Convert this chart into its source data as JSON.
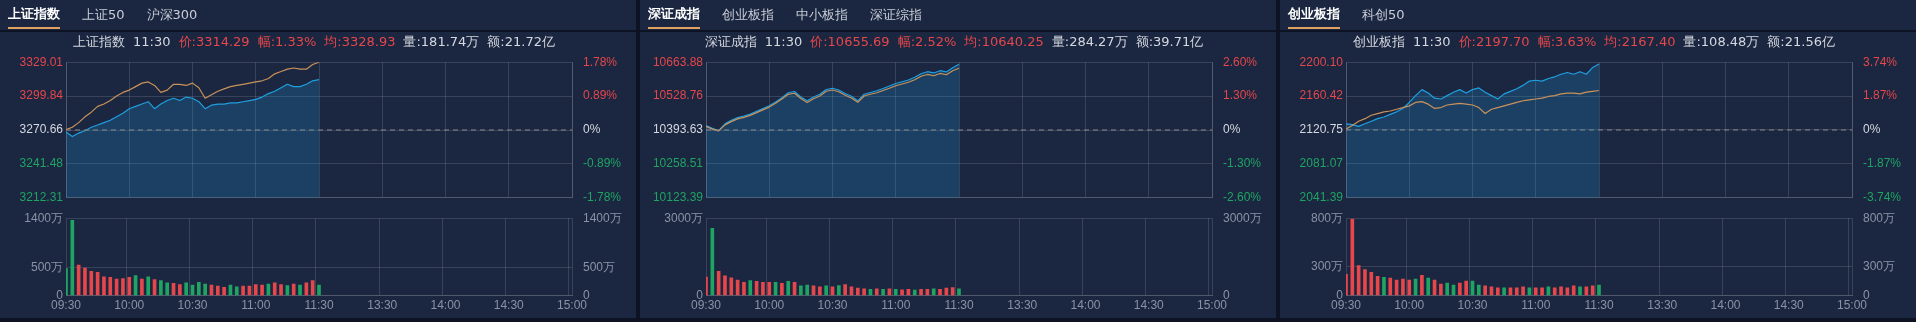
{
  "chart_data": [
    {
      "type": "other",
      "annotations": [
        "上证指数",
        "上证50",
        "沪深300"
      ]
    },
    {
      "type": "line",
      "title": "上证指数",
      "annotations": [
        "11:30",
        "价:3314.29",
        "幅:1.33%",
        "均:3328.93",
        "量:181.74万",
        "额:21.72亿"
      ],
      "categories": [
        null,
        null,
        null,
        null,
        null,
        null,
        null,
        null,
        null,
        null,
        null,
        null,
        null,
        null,
        null,
        null,
        null,
        null,
        null,
        null,
        null,
        null,
        null,
        null,
        null,
        null,
        null,
        null,
        null,
        null,
        null,
        null,
        null,
        null,
        null,
        null,
        null,
        null,
        null,
        null,
        null,
        null,
        null,
        null,
        null,
        null,
        null,
        null,
        null,
        null,
        null,
        null,
        null,
        null,
        null,
        null,
        null,
        null,
        null,
        null,
        null,
        null,
        null,
        null,
        null,
        null,
        null,
        null,
        null,
        null,
        null,
        null,
        null,
        null,
        null,
        null,
        null,
        null,
        null,
        null,
        null
      ],
      "tick_labels": "y",
      "ylim": [
        3212.31,
        3329.01
      ],
      "yticks": [
        3212.31,
        3241.48,
        3270.66,
        3299.84,
        3329.01
      ],
      "y2lim": [
        -1.78,
        1.78
      ],
      "y2ticks": [
        {
          "value": -1.78,
          "label": "-1.78%"
        },
        {
          "value": -0.89,
          "label": "-0.89%"
        },
        {
          "value": 0,
          "label": "0%"
        },
        {
          "value": 0.89,
          "label": "0.89%"
        },
        {
          "value": 1.78,
          "label": "1.78%"
        }
      ],
      "grid": true,
      "ref_lines": [
        {
          "axis": "y",
          "value": 3270.66,
          "color": "#8a8a8a",
          "line_style": "dashed"
        }
      ],
      "series": [
        {
          "type": "area",
          "color": "#1e9fe0",
          "values": [
            3269,
            3265,
            3268,
            3270,
            3273,
            3275,
            3277,
            3279,
            3282,
            3285,
            3289,
            3291,
            3293,
            3295,
            3289,
            3293,
            3296,
            3298,
            3296,
            3299,
            3298,
            3295,
            3289,
            3292,
            3293,
            3293,
            3294,
            3294,
            3295,
            3296,
            3297,
            3299,
            3302,
            3304,
            3307,
            3310,
            3308,
            3308,
            3310,
            3313,
            3314,
            null,
            null,
            null,
            null,
            null,
            null,
            null,
            null,
            null,
            null,
            null,
            null,
            null,
            null,
            null,
            null,
            null,
            null,
            null,
            null,
            null,
            null,
            null,
            null,
            null,
            null,
            null,
            null,
            null,
            null,
            null,
            null,
            null,
            null,
            null,
            null,
            null,
            null,
            null,
            null
          ]
        },
        {
          "type": "line",
          "color": "#c8925a",
          "values": [
            3271,
            3273,
            3277,
            3282,
            3286,
            3291,
            3293,
            3296,
            3300,
            3303,
            3305,
            3308,
            3311,
            3312,
            3309,
            3303,
            3305,
            3310,
            3310,
            3309,
            3311,
            3307,
            3298,
            3301,
            3304,
            3306,
            3308,
            3309,
            3310,
            3311,
            3312,
            3313,
            3315,
            3319,
            3321,
            3323,
            3324,
            3323,
            3323,
            3327,
            3329,
            null,
            null,
            null,
            null,
            null,
            null,
            null,
            null,
            null,
            null,
            null,
            null,
            null,
            null,
            null,
            null,
            null,
            null,
            null,
            null,
            null,
            null,
            null,
            null,
            null,
            null,
            null,
            null,
            null,
            null,
            null,
            null,
            null,
            null,
            null,
            null,
            null,
            null,
            null,
            null
          ]
        }
      ]
    },
    {
      "type": "bar",
      "categories": [
        "09:30",
        null,
        null,
        null,
        null,
        null,
        null,
        null,
        null,
        null,
        "10:00",
        null,
        null,
        null,
        null,
        null,
        null,
        null,
        null,
        null,
        "10:30",
        null,
        null,
        null,
        null,
        null,
        null,
        null,
        null,
        null,
        "11:00",
        null,
        null,
        null,
        null,
        null,
        null,
        null,
        null,
        null,
        "11:30",
        null,
        null,
        null,
        null,
        null,
        null,
        null,
        null,
        null,
        "13:30",
        null,
        null,
        null,
        null,
        null,
        null,
        null,
        null,
        null,
        "14:00",
        null,
        null,
        null,
        null,
        null,
        null,
        null,
        null,
        null,
        "14:30",
        null,
        null,
        null,
        null,
        null,
        null,
        null,
        null,
        null,
        "15:00"
      ],
      "ylim": [
        0,
        1400
      ],
      "yticks": [
        0,
        {
          "value": 500,
          "label": "500万"
        },
        {
          "value": 1400,
          "label": "1400万"
        }
      ],
      "y2lim": [
        0,
        1400
      ],
      "y2ticks": [
        {
          "value": 0,
          "label": "0"
        },
        {
          "value": 500,
          "label": "500万"
        },
        {
          "value": 1400,
          "label": "1400万"
        }
      ],
      "grid": true,
      "series": [
        {
          "values": [
            490,
            1360,
            550,
            500,
            440,
            420,
            340,
            330,
            300,
            310,
            330,
            360,
            300,
            340,
            290,
            270,
            230,
            220,
            200,
            230,
            190,
            240,
            210,
            190,
            170,
            150,
            190,
            160,
            170,
            170,
            200,
            190,
            210,
            230,
            200,
            180,
            210,
            190,
            230,
            270,
            190,
            null,
            null,
            null,
            null,
            null,
            null,
            null,
            null,
            null,
            null,
            null,
            null,
            null,
            null,
            null,
            null,
            null,
            null,
            null,
            null,
            null,
            null,
            null,
            null,
            null,
            null,
            null,
            null,
            null,
            null,
            null,
            null,
            null,
            null,
            null,
            null,
            null,
            null,
            null,
            null
          ],
          "colors": [
            "#1fa463",
            "#1fa463",
            "#e5474b",
            "#e5474b",
            "#e5474b",
            "#e5474b",
            "#e5474b",
            "#e5474b",
            "#e5474b",
            "#e5474b",
            "#e5474b",
            "#1fa463",
            "#e5474b",
            "#1fa463",
            "#e5474b",
            "#1fa463",
            "#1fa463",
            "#e5474b",
            "#e5474b",
            "#1fa463",
            "#1fa463",
            "#1fa463",
            "#1fa463",
            "#e5474b",
            "#e5474b",
            "#e5474b",
            "#1fa463",
            "#1fa463",
            "#e5474b",
            "#e5474b",
            "#e5474b",
            "#e5474b",
            "#1fa463",
            "#e5474b",
            "#e5474b",
            "#1fa463",
            "#e5474b",
            "#1fa463",
            "#e5474b",
            "#e5474b",
            "#1fa463",
            null,
            null,
            null,
            null,
            null,
            null,
            null,
            null,
            null,
            null,
            null,
            null,
            null,
            null,
            null,
            null,
            null,
            null,
            null,
            null,
            null,
            null,
            null,
            null,
            null,
            null,
            null,
            null,
            null,
            null,
            null,
            null,
            null,
            null,
            null,
            null,
            null,
            null,
            null,
            null
          ]
        }
      ]
    },
    {
      "type": "other",
      "annotations": [
        "深证成指",
        "创业板指",
        "中小板指",
        "深证综指"
      ]
    },
    {
      "type": "line",
      "title": "深证成指",
      "annotations": [
        "11:30",
        "价:10655.69",
        "幅:2.52%",
        "均:10640.25",
        "量:284.27万",
        "额:39.71亿"
      ],
      "categories": [
        null,
        null,
        null,
        null,
        null,
        null,
        null,
        null,
        null,
        null,
        null,
        null,
        null,
        null,
        null,
        null,
        null,
        null,
        null,
        null,
        null,
        null,
        null,
        null,
        null,
        null,
        null,
        null,
        null,
        null,
        null,
        null,
        null,
        null,
        null,
        null,
        null,
        null,
        null,
        null,
        null,
        null,
        null,
        null,
        null,
        null,
        null,
        null,
        null,
        null,
        null,
        null,
        null,
        null,
        null,
        null,
        null,
        null,
        null,
        null,
        null,
        null,
        null,
        null,
        null,
        null,
        null,
        null,
        null,
        null,
        null,
        null,
        null,
        null,
        null,
        null,
        null,
        null,
        null,
        null,
        null
      ],
      "tick_labels": "y",
      "ylim": [
        10123.39,
        10663.88
      ],
      "yticks": [
        10123.39,
        10258.51,
        10393.63,
        10528.76,
        10663.88
      ],
      "y2lim": [
        -2.6,
        2.6
      ],
      "y2ticks": [
        {
          "value": -2.6,
          "label": "-2.60%"
        },
        {
          "value": -1.3,
          "label": "-1.30%"
        },
        {
          "value": 0,
          "label": "0%"
        },
        {
          "value": 1.3,
          "label": "1.30%"
        },
        {
          "value": 2.6,
          "label": "2.60%"
        }
      ],
      "grid": true,
      "ref_lines": [
        {
          "axis": "y",
          "value": 10393.63,
          "color": "#8a8a8a",
          "line_style": "dashed"
        }
      ],
      "series": [
        {
          "type": "area",
          "color": "#1e9fe0",
          "values": [
            10411,
            10400,
            10391,
            10418,
            10432,
            10443,
            10449,
            10457,
            10468,
            10479,
            10490,
            10505,
            10522,
            10542,
            10547,
            10525,
            10510,
            10525,
            10536,
            10555,
            10560,
            10553,
            10539,
            10528,
            10510,
            10536,
            10543,
            10550,
            10559,
            10569,
            10579,
            10586,
            10593,
            10604,
            10618,
            10626,
            10621,
            10630,
            10625,
            10642,
            10656,
            null,
            null,
            null,
            null,
            null,
            null,
            null,
            null,
            null,
            null,
            null,
            null,
            null,
            null,
            null,
            null,
            null,
            null,
            null,
            null,
            null,
            null,
            null,
            null,
            null,
            null,
            null,
            null,
            null,
            null,
            null,
            null,
            null,
            null,
            null,
            null,
            null,
            null,
            null,
            null
          ]
        },
        {
          "type": "line",
          "color": "#c8925a",
          "values": [
            10408,
            10397,
            10390,
            10414,
            10427,
            10438,
            10444,
            10452,
            10463,
            10474,
            10485,
            10500,
            10517,
            10536,
            10540,
            10519,
            10503,
            10518,
            10529,
            10548,
            10553,
            10546,
            10532,
            10521,
            10504,
            10529,
            10536,
            10542,
            10551,
            10560,
            10570,
            10577,
            10584,
            10594,
            10608,
            10615,
            10610,
            10619,
            10614,
            10630,
            10640,
            null,
            null,
            null,
            null,
            null,
            null,
            null,
            null,
            null,
            null,
            null,
            null,
            null,
            null,
            null,
            null,
            null,
            null,
            null,
            null,
            null,
            null,
            null,
            null,
            null,
            null,
            null,
            null,
            null,
            null,
            null,
            null,
            null,
            null,
            null,
            null,
            null,
            null,
            null,
            null
          ]
        }
      ]
    },
    {
      "type": "bar",
      "categories": [
        "09:30",
        null,
        null,
        null,
        null,
        null,
        null,
        null,
        null,
        null,
        "10:00",
        null,
        null,
        null,
        null,
        null,
        null,
        null,
        null,
        null,
        "10:30",
        null,
        null,
        null,
        null,
        null,
        null,
        null,
        null,
        null,
        "11:00",
        null,
        null,
        null,
        null,
        null,
        null,
        null,
        null,
        null,
        "11:30",
        null,
        null,
        null,
        null,
        null,
        null,
        null,
        null,
        null,
        "13:30",
        null,
        null,
        null,
        null,
        null,
        null,
        null,
        null,
        null,
        "14:00",
        null,
        null,
        null,
        null,
        null,
        null,
        null,
        null,
        null,
        "14:30",
        null,
        null,
        null,
        null,
        null,
        null,
        null,
        null,
        null,
        "15:00"
      ],
      "ylim": [
        0,
        3000
      ],
      "yticks": [
        0,
        {
          "value": 3000,
          "label": "3000万"
        }
      ],
      "y2lim": [
        0,
        3000
      ],
      "y2ticks": [
        {
          "value": 0,
          "label": "0"
        },
        {
          "value": 3000,
          "label": "3000万"
        }
      ],
      "grid": true,
      "series": [
        {
          "values": [
            720,
            2610,
            940,
            770,
            690,
            600,
            510,
            580,
            550,
            510,
            510,
            510,
            480,
            550,
            510,
            380,
            410,
            380,
            340,
            380,
            340,
            390,
            430,
            340,
            290,
            260,
            240,
            260,
            240,
            260,
            240,
            220,
            240,
            210,
            240,
            240,
            260,
            240,
            290,
            310,
            260,
            null,
            null,
            null,
            null,
            null,
            null,
            null,
            null,
            null,
            null,
            null,
            null,
            null,
            null,
            null,
            null,
            null,
            null,
            null,
            null,
            null,
            null,
            null,
            null,
            null,
            null,
            null,
            null,
            null,
            null,
            null,
            null,
            null,
            null,
            null,
            null,
            null,
            null,
            null,
            null
          ],
          "colors": [
            "#e5474b",
            "#1fa463",
            "#e5474b",
            "#e5474b",
            "#e5474b",
            "#e5474b",
            "#e5474b",
            "#1fa463",
            "#e5474b",
            "#e5474b",
            "#e5474b",
            "#1fa463",
            "#e5474b",
            "#1fa463",
            "#e5474b",
            "#1fa463",
            "#1fa463",
            "#e5474b",
            "#e5474b",
            "#1fa463",
            "#e5474b",
            "#1fa463",
            "#e5474b",
            "#e5474b",
            "#e5474b",
            "#e5474b",
            "#1fa463",
            "#e5474b",
            "#1fa463",
            "#e5474b",
            "#1fa463",
            "#e5474b",
            "#e5474b",
            "#1fa463",
            "#e5474b",
            "#e5474b",
            "#1fa463",
            "#e5474b",
            "#e5474b",
            "#e5474b",
            "#1fa463",
            null,
            null,
            null,
            null,
            null,
            null,
            null,
            null,
            null,
            null,
            null,
            null,
            null,
            null,
            null,
            null,
            null,
            null,
            null,
            null,
            null,
            null,
            null,
            null,
            null,
            null,
            null,
            null,
            null,
            null,
            null,
            null,
            null,
            null,
            null,
            null,
            null,
            null,
            null,
            null
          ]
        }
      ]
    },
    {
      "type": "other",
      "annotations": [
        "创业板指",
        "科创50"
      ]
    },
    {
      "type": "line",
      "title": "创业板指",
      "annotations": [
        "11:30",
        "价:2197.70",
        "幅:3.63%",
        "均:2167.40",
        "量:108.48万",
        "额:21.56亿"
      ],
      "categories": [
        null,
        null,
        null,
        null,
        null,
        null,
        null,
        null,
        null,
        null,
        null,
        null,
        null,
        null,
        null,
        null,
        null,
        null,
        null,
        null,
        null,
        null,
        null,
        null,
        null,
        null,
        null,
        null,
        null,
        null,
        null,
        null,
        null,
        null,
        null,
        null,
        null,
        null,
        null,
        null,
        null,
        null,
        null,
        null,
        null,
        null,
        null,
        null,
        null,
        null,
        null,
        null,
        null,
        null,
        null,
        null,
        null,
        null,
        null,
        null,
        null,
        null,
        null,
        null,
        null,
        null,
        null,
        null,
        null,
        null,
        null,
        null,
        null,
        null,
        null,
        null,
        null,
        null,
        null,
        null,
        null
      ],
      "tick_labels": "y",
      "ylim": [
        2041.39,
        2200.1
      ],
      "yticks": [
        2041.39,
        2081.07,
        2120.75,
        2160.42,
        {
          "value": 2200.1,
          "label": "2200.10"
        }
      ],
      "y2lim": [
        -3.74,
        3.74
      ],
      "y2ticks": [
        {
          "value": -3.74,
          "label": "-3.74%"
        },
        {
          "value": -1.87,
          "label": "-1.87%"
        },
        {
          "value": 0,
          "label": "0%"
        },
        {
          "value": 1.87,
          "label": "1.87%"
        },
        {
          "value": 3.74,
          "label": "3.74%"
        }
      ],
      "grid": true,
      "ref_lines": [
        {
          "axis": "y",
          "value": 2120.75,
          "color": "#8a8a8a",
          "line_style": "dashed"
        }
      ],
      "series": [
        {
          "type": "area",
          "color": "#1e9fe0",
          "values": [
            2128,
            2127,
            2125,
            2128,
            2131,
            2134,
            2136,
            2139,
            2142,
            2146,
            2153,
            2161,
            2168,
            2164,
            2158,
            2157,
            2161,
            2165,
            2168,
            2164,
            2168,
            2170,
            2165,
            2161,
            2157,
            2163,
            2166,
            2169,
            2173,
            2178,
            2179,
            2178,
            2181,
            2183,
            2186,
            2188,
            2186,
            2189,
            2186,
            2194,
            2198,
            null,
            null,
            null,
            null,
            null,
            null,
            null,
            null,
            null,
            null,
            null,
            null,
            null,
            null,
            null,
            null,
            null,
            null,
            null,
            null,
            null,
            null,
            null,
            null,
            null,
            null,
            null,
            null,
            null,
            null,
            null,
            null,
            null,
            null,
            null,
            null,
            null,
            null,
            null,
            null
          ]
        },
        {
          "type": "line",
          "color": "#c8925a",
          "values": [
            2122,
            2126,
            2131,
            2134,
            2138,
            2140,
            2142,
            2143,
            2145,
            2147,
            2149,
            2153,
            2154,
            2151,
            2146,
            2147,
            2150,
            2151,
            2152,
            2151,
            2150,
            2147,
            2140,
            2145,
            2147,
            2149,
            2151,
            2153,
            2155,
            2156,
            2157,
            2158,
            2160,
            2161,
            2163,
            2164,
            2164,
            2163,
            2165,
            2166,
            2167,
            null,
            null,
            null,
            null,
            null,
            null,
            null,
            null,
            null,
            null,
            null,
            null,
            null,
            null,
            null,
            null,
            null,
            null,
            null,
            null,
            null,
            null,
            null,
            null,
            null,
            null,
            null,
            null,
            null,
            null,
            null,
            null,
            null,
            null,
            null,
            null,
            null,
            null,
            null,
            null
          ]
        }
      ]
    },
    {
      "type": "bar",
      "categories": [
        "09:30",
        null,
        null,
        null,
        null,
        null,
        null,
        null,
        null,
        null,
        "10:00",
        null,
        null,
        null,
        null,
        null,
        null,
        null,
        null,
        null,
        "10:30",
        null,
        null,
        null,
        null,
        null,
        null,
        null,
        null,
        null,
        "11:00",
        null,
        null,
        null,
        null,
        null,
        null,
        null,
        null,
        null,
        "11:30",
        null,
        null,
        null,
        null,
        null,
        null,
        null,
        null,
        null,
        "13:30",
        null,
        null,
        null,
        null,
        null,
        null,
        null,
        null,
        null,
        "14:00",
        null,
        null,
        null,
        null,
        null,
        null,
        null,
        null,
        null,
        "14:30",
        null,
        null,
        null,
        null,
        null,
        null,
        null,
        null,
        null,
        "15:00"
      ],
      "ylim": [
        0,
        800
      ],
      "yticks": [
        0,
        {
          "value": 300,
          "label": "300万"
        },
        {
          "value": 800,
          "label": "800万"
        }
      ],
      "y2lim": [
        0,
        800
      ],
      "y2ticks": [
        {
          "value": 0,
          "label": "0"
        },
        {
          "value": 300,
          "label": "300万"
        },
        {
          "value": 800,
          "label": "800万"
        }
      ],
      "grid": true,
      "series": [
        {
          "values": [
            220,
            790,
            310,
            270,
            240,
            200,
            190,
            180,
            160,
            170,
            160,
            170,
            210,
            180,
            160,
            120,
            130,
            110,
            130,
            150,
            150,
            110,
            100,
            90,
            80,
            80,
            80,
            80,
            90,
            80,
            80,
            80,
            90,
            80,
            90,
            80,
            100,
            90,
            90,
            100,
            110,
            null,
            null,
            null,
            null,
            null,
            null,
            null,
            null,
            null,
            null,
            null,
            null,
            null,
            null,
            null,
            null,
            null,
            null,
            null,
            null,
            null,
            null,
            null,
            null,
            null,
            null,
            null,
            null,
            null,
            null,
            null,
            null,
            null,
            null,
            null,
            null,
            null,
            null,
            null,
            null
          ],
          "colors": [
            "#e5474b",
            "#e5474b",
            "#e5474b",
            "#e5474b",
            "#e5474b",
            "#e5474b",
            "#1fa463",
            "#e5474b",
            "#e5474b",
            "#e5474b",
            "#e5474b",
            "#1fa463",
            "#e5474b",
            "#1fa463",
            "#e5474b",
            "#e5474b",
            "#1fa463",
            "#1fa463",
            "#e5474b",
            "#e5474b",
            "#1fa463",
            "#1fa463",
            "#e5474b",
            "#e5474b",
            "#e5474b",
            "#1fa463",
            "#e5474b",
            "#e5474b",
            "#e5474b",
            "#1fa463",
            "#e5474b",
            "#e5474b",
            "#1fa463",
            "#e5474b",
            "#e5474b",
            "#e5474b",
            "#e5474b",
            "#1fa463",
            "#e5474b",
            "#e5474b",
            "#1fa463",
            null,
            null,
            null,
            null,
            null,
            null,
            null,
            null,
            null,
            null,
            null,
            null,
            null,
            null,
            null,
            null,
            null,
            null,
            null,
            null,
            null,
            null,
            null,
            null,
            null,
            null,
            null,
            null,
            null,
            null,
            null,
            null,
            null,
            null,
            null,
            null,
            null,
            null,
            null,
            null
          ]
        }
      ]
    }
  ]
}
